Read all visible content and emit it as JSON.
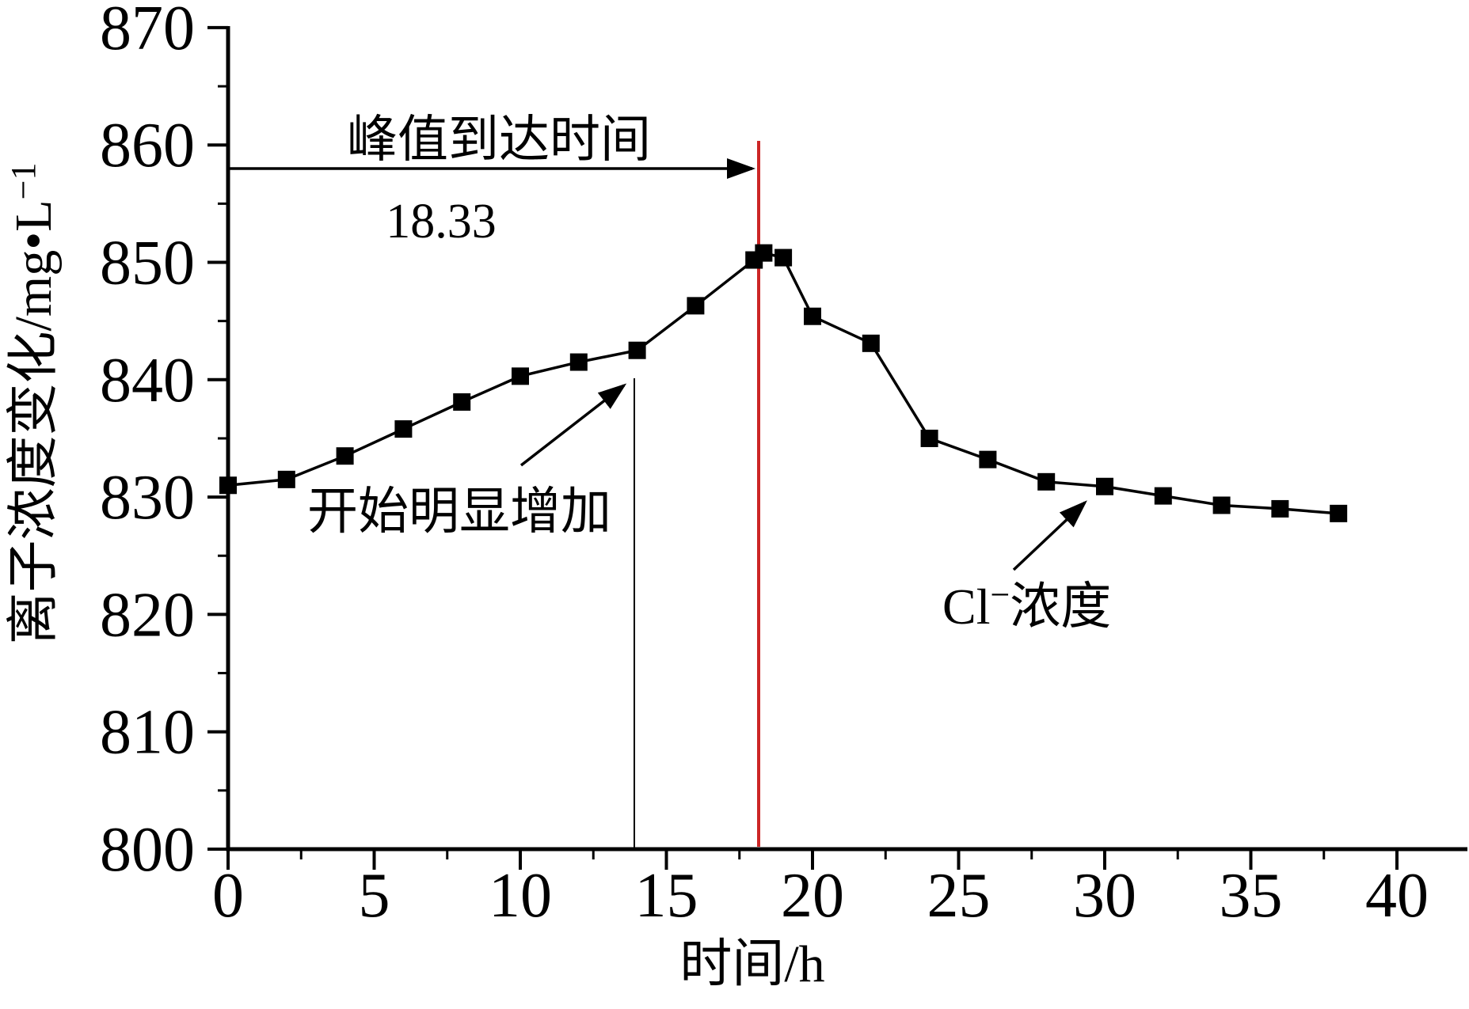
{
  "chart_data": {
    "type": "line",
    "title": "",
    "grid": false,
    "legend_position": "none",
    "marker": "square",
    "colors": {
      "line": "#000000",
      "marker": "#000000",
      "red_line": "#cc2626",
      "background": "#ffffff"
    },
    "x_axis": {
      "label": "时间/h",
      "min": 0,
      "max": 42.3,
      "major_ticks": [
        0,
        5,
        10,
        15,
        20,
        25,
        30,
        35,
        40
      ],
      "minor_step": 2.5
    },
    "y_axis": {
      "label": "离子浓度变化/mg•L⁻¹",
      "label_base": "离子浓度变化/mg•L",
      "label_sup": "−1",
      "min": 800,
      "max": 870,
      "major_ticks": [
        800,
        810,
        820,
        830,
        840,
        850,
        860,
        870
      ],
      "minor_step": 5
    },
    "series": {
      "name": "Cl−浓度",
      "x": [
        0,
        2,
        4,
        6,
        8,
        10,
        12,
        14,
        16,
        18,
        18.33,
        19,
        20,
        22,
        24,
        26,
        28,
        30,
        32,
        34,
        36,
        38
      ],
      "y": [
        831.0,
        831.5,
        833.5,
        835.8,
        838.1,
        840.3,
        841.5,
        842.5,
        846.3,
        850.2,
        850.8,
        850.4,
        845.4,
        843.1,
        835.0,
        833.2,
        831.3,
        830.9,
        830.1,
        829.3,
        829.0,
        828.6
      ]
    },
    "annotations": {
      "peak_label": "峰值到达时间",
      "peak_value": "18.33",
      "peak_arrow": {
        "at_y": 858,
        "from_x": 0,
        "to_x": 18.15
      },
      "red_line": {
        "x": 18.15,
        "color": "#cc2626"
      },
      "rise_label": "开始明显增加",
      "rise_line_x": 13.9,
      "cl_label": {
        "base": "Cl",
        "sup": "−",
        "rest": "浓度",
        "full": "Cl−浓度"
      }
    }
  }
}
